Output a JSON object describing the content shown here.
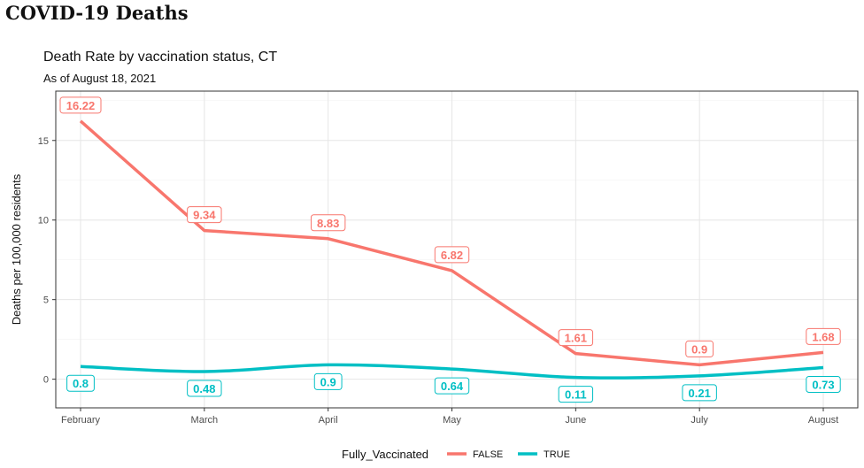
{
  "page_title": "COVID-19 Deaths",
  "chart_data": {
    "type": "line",
    "title": "Death Rate by vaccination status, CT",
    "subtitle": "As of August 18, 2021",
    "xlabel": "",
    "ylabel": "Deaths per 100,000 residents",
    "categories": [
      "February",
      "March",
      "April",
      "May",
      "June",
      "July",
      "August"
    ],
    "ylim": [
      -1.8,
      18.1
    ],
    "yticks": [
      0,
      5,
      10,
      15
    ],
    "grid": true,
    "legend": {
      "title": "Fully_Vaccinated",
      "placement": "bottom"
    },
    "series": [
      {
        "name": "FALSE",
        "color": "#F8766D",
        "smooth": false,
        "values": [
          16.22,
          9.34,
          8.83,
          6.82,
          1.61,
          0.9,
          1.68
        ]
      },
      {
        "name": "TRUE",
        "color": "#00BFC4",
        "smooth": true,
        "values": [
          0.8,
          0.48,
          0.9,
          0.64,
          0.11,
          0.21,
          0.73
        ]
      }
    ]
  }
}
